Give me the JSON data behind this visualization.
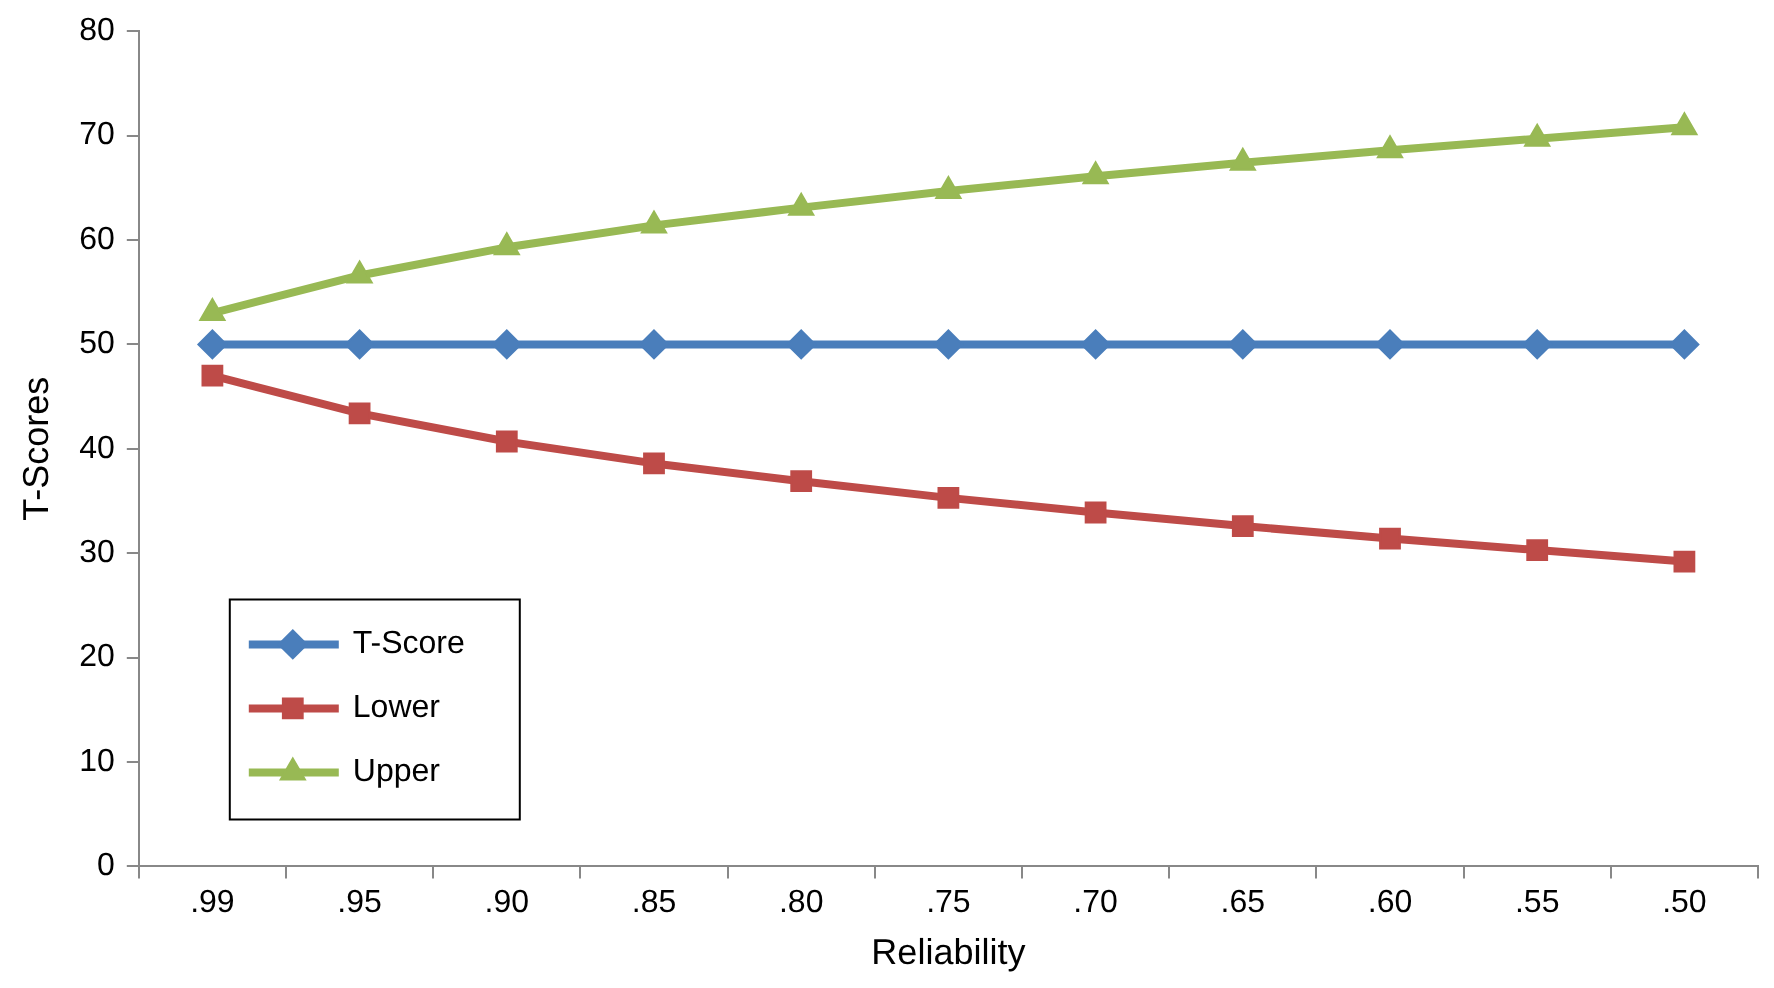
{
  "chart_data": {
    "type": "line",
    "xlabel": "Reliability",
    "ylabel": "T-Scores",
    "categories": [
      ".99",
      ".95",
      ".90",
      ".85",
      ".80",
      ".75",
      ".70",
      ".65",
      ".60",
      ".55",
      ".50"
    ],
    "series": [
      {
        "name": "T-Score",
        "color": "#4a7ebb",
        "marker": "diamond",
        "values": [
          50,
          50,
          50,
          50,
          50,
          50,
          50,
          50,
          50,
          50,
          50
        ]
      },
      {
        "name": "Lower",
        "color": "#be4b48",
        "marker": "square",
        "values": [
          47,
          43.4,
          40.7,
          38.6,
          36.9,
          35.3,
          33.9,
          32.6,
          31.4,
          30.3,
          29.2
        ]
      },
      {
        "name": "Upper",
        "color": "#98b954",
        "marker": "triangle",
        "values": [
          53,
          56.6,
          59.3,
          61.4,
          63.1,
          64.7,
          66.1,
          67.4,
          68.6,
          69.7,
          70.8
        ]
      }
    ],
    "ylim": [
      0,
      80
    ],
    "yticks": [
      0,
      10,
      20,
      30,
      40,
      50,
      60,
      70,
      80
    ],
    "grid": false,
    "legend": "bottom left",
    "line_style": "solid"
  }
}
